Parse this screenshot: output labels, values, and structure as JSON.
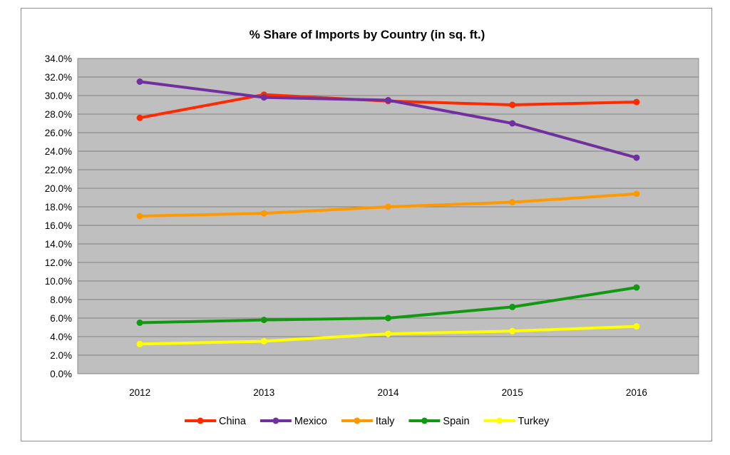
{
  "chart_data": {
    "type": "line",
    "title": "% Share of Imports by Country (in sq. ft.)",
    "xlabel": "",
    "ylabel": "",
    "x": [
      "2012",
      "2013",
      "2014",
      "2015",
      "2016"
    ],
    "ylim": [
      0,
      34
    ],
    "y_tick_step": 2,
    "y_tick_format": "percent_1dp",
    "grid": true,
    "plot_background": "#bfbfbf",
    "legend_position": "bottom",
    "series": [
      {
        "name": "China",
        "color": "#ff2a00",
        "values": [
          27.6,
          30.1,
          29.4,
          29.0,
          29.3
        ]
      },
      {
        "name": "Mexico",
        "color": "#7030a0",
        "values": [
          31.5,
          29.8,
          29.5,
          27.0,
          23.3
        ]
      },
      {
        "name": "Italy",
        "color": "#ff9900",
        "values": [
          17.0,
          17.3,
          18.0,
          18.5,
          19.4
        ]
      },
      {
        "name": "Spain",
        "color": "#119a11",
        "values": [
          5.5,
          5.8,
          6.0,
          7.2,
          9.3
        ]
      },
      {
        "name": "Turkey",
        "color": "#ffff00",
        "values": [
          3.2,
          3.5,
          4.3,
          4.6,
          5.1
        ]
      }
    ]
  }
}
